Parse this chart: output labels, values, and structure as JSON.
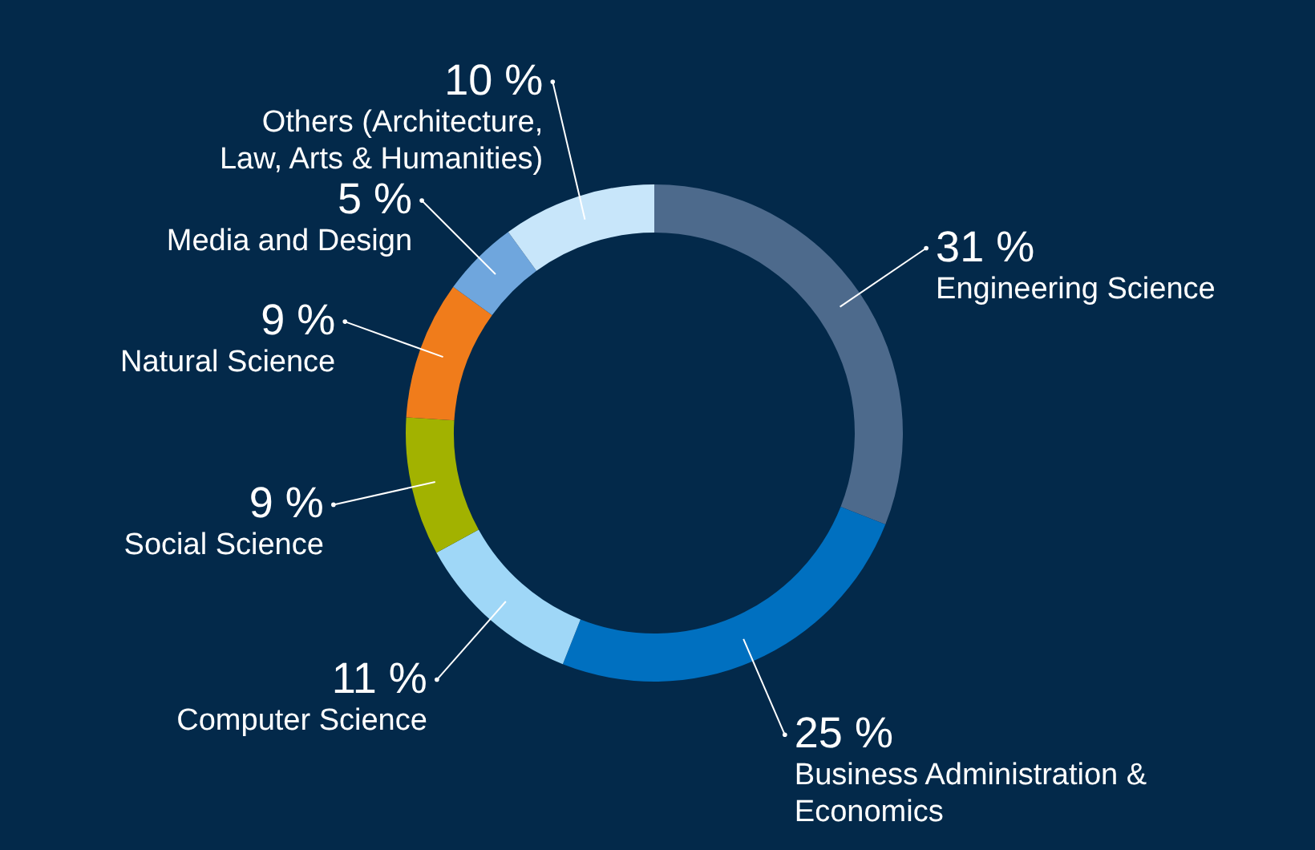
{
  "chart_data": {
    "type": "donut",
    "categories": [
      "Engineering Science",
      "Business Administration & Economics",
      "Computer Science",
      "Social Science",
      "Natural Science",
      "Media and Design",
      "Others (Architecture, Law, Arts & Humanities)"
    ],
    "values": [
      31,
      25,
      11,
      9,
      9,
      5,
      10
    ],
    "colors": [
      "#4d6a8c",
      "#0070c0",
      "#9fd7f7",
      "#a2b200",
      "#f07c1b",
      "#6fa6dd",
      "#c8e6fa"
    ],
    "value_labels": [
      "31 %",
      "25 %",
      "11 %",
      "9 %",
      "9 %",
      "5 %",
      "10 %"
    ]
  }
}
